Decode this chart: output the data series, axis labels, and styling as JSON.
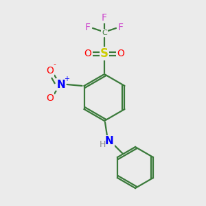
{
  "background_color": "#ebebeb",
  "bond_color": "#3a7a3a",
  "atom_colors": {
    "F": "#cc44cc",
    "S": "#cccc00",
    "O": "#ff0000",
    "N": "#0000ff",
    "H": "#888888",
    "C": "#3a7a3a"
  },
  "figsize": [
    3.0,
    3.0
  ],
  "dpi": 100
}
